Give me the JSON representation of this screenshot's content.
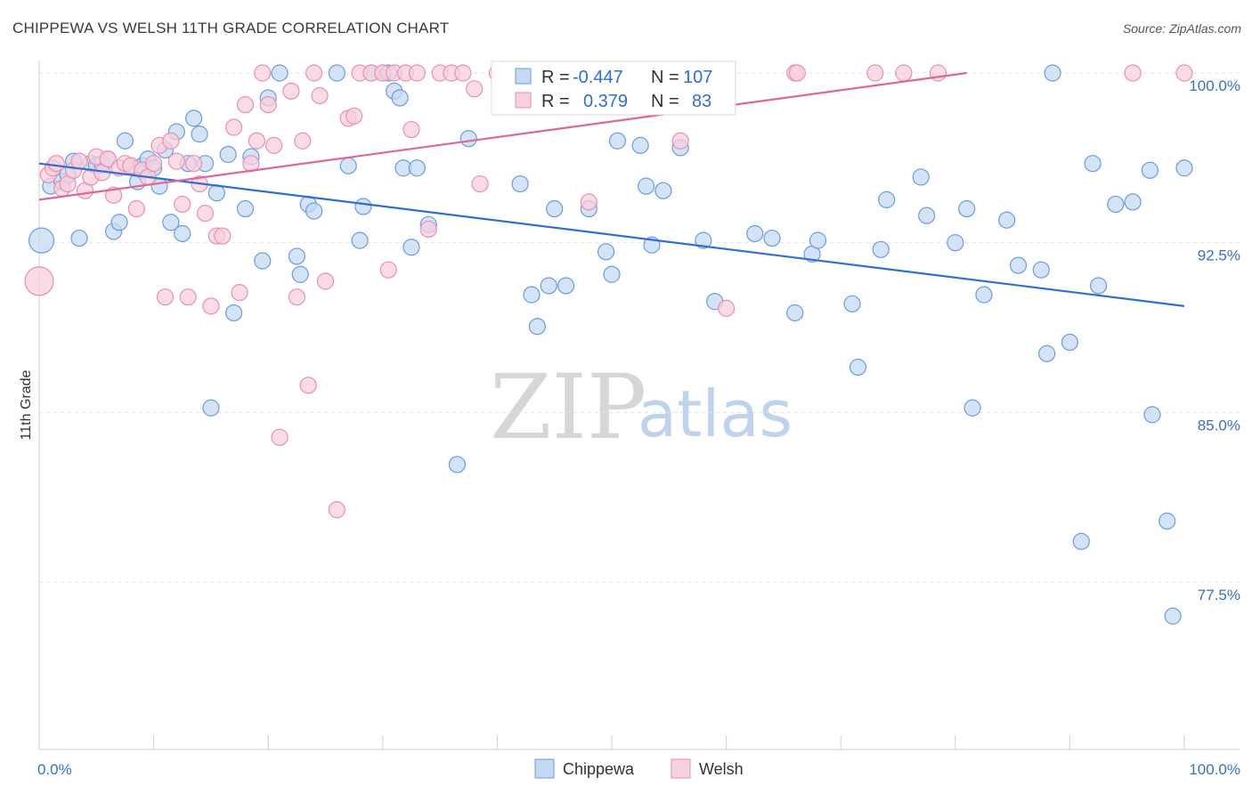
{
  "title": "CHIPPEWA VS WELSH 11TH GRADE CORRELATION CHART",
  "source": "Source: ZipAtlas.com",
  "watermark": {
    "zip": "ZIP",
    "atlas": "atlas"
  },
  "chart_data": {
    "type": "scatter",
    "title": "CHIPPEWA VS WELSH 11TH GRADE CORRELATION CHART",
    "xlabel": "",
    "ylabel": "11th Grade",
    "xlim": [
      0,
      100
    ],
    "ylim": [
      71.0,
      101.5
    ],
    "x_tick_labels": [
      {
        "value": 0,
        "label": "0.0%"
      },
      {
        "value": 100,
        "label": "100.0%"
      }
    ],
    "y_tick_labels": [
      {
        "value": 100.0,
        "label": "100.0%"
      },
      {
        "value": 92.5,
        "label": "92.5%"
      },
      {
        "value": 85.0,
        "label": "85.0%"
      },
      {
        "value": 77.5,
        "label": "77.5%"
      }
    ],
    "legend_position": "top-center",
    "series": [
      {
        "name": "Chippewa",
        "color": "#6a9ce0",
        "fill": "#c6d9f3",
        "R": "-0.447",
        "N": "107",
        "trend": {
          "x": [
            0,
            100
          ],
          "y": [
            96.0,
            89.7
          ]
        },
        "points": [
          [
            0.2,
            92.6,
            14
          ],
          [
            1.0,
            95.0,
            9
          ],
          [
            2.0,
            95.2,
            9
          ],
          [
            2.5,
            95.5,
            9
          ],
          [
            3.0,
            96.1,
            9
          ],
          [
            3.5,
            92.7,
            9
          ],
          [
            4.5,
            96.0,
            9
          ],
          [
            5.0,
            95.9,
            9
          ],
          [
            5.5,
            96.0,
            9
          ],
          [
            6.0,
            96.2,
            9
          ],
          [
            6.5,
            93.0,
            9
          ],
          [
            7.0,
            93.4,
            9
          ],
          [
            7.5,
            97.0,
            9
          ],
          [
            8.5,
            95.8,
            9
          ],
          [
            8.6,
            95.2,
            9
          ],
          [
            9.0,
            95.9,
            9
          ],
          [
            9.5,
            96.2,
            9
          ],
          [
            10.0,
            95.8,
            9
          ],
          [
            10.5,
            95.0,
            9
          ],
          [
            11.0,
            96.6,
            9
          ],
          [
            11.5,
            93.4,
            9
          ],
          [
            12.0,
            97.4,
            9
          ],
          [
            12.5,
            92.9,
            9
          ],
          [
            13.0,
            96.0,
            9
          ],
          [
            13.5,
            98.0,
            9
          ],
          [
            14.0,
            97.3,
            9
          ],
          [
            14.5,
            96.0,
            9
          ],
          [
            15.0,
            85.2,
            9
          ],
          [
            15.5,
            94.7,
            9
          ],
          [
            16.5,
            96.4,
            9
          ],
          [
            17.0,
            89.4,
            9
          ],
          [
            18.0,
            94.0,
            9
          ],
          [
            18.5,
            96.3,
            9
          ],
          [
            19.5,
            91.7,
            9
          ],
          [
            20.0,
            98.9,
            9
          ],
          [
            21.0,
            100.0,
            9
          ],
          [
            22.5,
            91.9,
            9
          ],
          [
            22.8,
            91.1,
            9
          ],
          [
            23.5,
            94.2,
            9
          ],
          [
            24.0,
            93.9,
            9
          ],
          [
            26.0,
            100.0,
            9
          ],
          [
            27.0,
            95.9,
            9
          ],
          [
            28.0,
            92.6,
            9
          ],
          [
            28.3,
            94.1,
            9
          ],
          [
            29.0,
            100.0,
            9
          ],
          [
            30.0,
            100.0,
            9
          ],
          [
            30.5,
            100.0,
            9
          ],
          [
            31.0,
            99.2,
            9
          ],
          [
            31.5,
            98.9,
            9
          ],
          [
            31.8,
            95.8,
            9
          ],
          [
            32.5,
            92.3,
            9
          ],
          [
            33.0,
            95.8,
            9
          ],
          [
            34.0,
            93.3,
            9
          ],
          [
            36.5,
            82.7,
            9
          ],
          [
            37.5,
            97.1,
            9
          ],
          [
            42.0,
            95.1,
            9
          ],
          [
            43.0,
            90.2,
            9
          ],
          [
            43.5,
            88.8,
            9
          ],
          [
            44.5,
            90.6,
            9
          ],
          [
            45.0,
            94.0,
            9
          ],
          [
            46.0,
            90.6,
            9
          ],
          [
            48.0,
            94.0,
            9
          ],
          [
            49.5,
            92.1,
            9
          ],
          [
            50.0,
            91.1,
            9
          ],
          [
            50.5,
            97.0,
            9
          ],
          [
            52.5,
            96.8,
            9
          ],
          [
            53.0,
            95.0,
            9
          ],
          [
            53.5,
            92.4,
            9
          ],
          [
            54.5,
            94.8,
            9
          ],
          [
            56.0,
            96.7,
            9
          ],
          [
            58.0,
            92.6,
            9
          ],
          [
            59.0,
            89.9,
            9
          ],
          [
            62.5,
            92.9,
            9
          ],
          [
            64.0,
            92.7,
            9
          ],
          [
            66.0,
            89.4,
            9
          ],
          [
            67.5,
            92.0,
            9
          ],
          [
            68.0,
            92.6,
            9
          ],
          [
            71.0,
            89.8,
            9
          ],
          [
            71.5,
            87.0,
            9
          ],
          [
            73.5,
            92.2,
            9
          ],
          [
            74.0,
            94.4,
            9
          ],
          [
            77.0,
            95.4,
            9
          ],
          [
            77.5,
            93.7,
            9
          ],
          [
            80.0,
            92.5,
            9
          ],
          [
            81.0,
            94.0,
            9
          ],
          [
            81.5,
            85.2,
            9
          ],
          [
            82.5,
            90.2,
            9
          ],
          [
            84.5,
            93.5,
            9
          ],
          [
            85.5,
            91.5,
            9
          ],
          [
            87.5,
            91.3,
            9
          ],
          [
            88.0,
            87.6,
            9
          ],
          [
            88.5,
            100.0,
            9
          ],
          [
            90.0,
            88.1,
            9
          ],
          [
            91.0,
            79.3,
            9
          ],
          [
            92.0,
            96.0,
            9
          ],
          [
            92.5,
            90.6,
            9
          ],
          [
            94.0,
            94.2,
            9
          ],
          [
            95.5,
            94.3,
            9
          ],
          [
            97.0,
            95.7,
            9
          ],
          [
            97.2,
            84.9,
            9
          ],
          [
            98.5,
            80.2,
            9
          ],
          [
            99.0,
            76.0,
            9
          ],
          [
            100.0,
            95.8,
            9
          ]
        ]
      },
      {
        "name": "Welsh",
        "color": "#e98fb0",
        "fill": "#f8cfdd",
        "R": "0.379",
        "N": "83",
        "trend": {
          "x": [
            0,
            81
          ],
          "y": [
            94.4,
            100.0
          ]
        },
        "points": [
          [
            0.0,
            90.8,
            16
          ],
          [
            0.8,
            95.5,
            9
          ],
          [
            1.2,
            95.8,
            9
          ],
          [
            1.5,
            96.0,
            9
          ],
          [
            2.0,
            94.9,
            9
          ],
          [
            2.5,
            95.1,
            9
          ],
          [
            3.0,
            95.7,
            9
          ],
          [
            3.5,
            96.1,
            9
          ],
          [
            4.0,
            94.8,
            9
          ],
          [
            4.5,
            95.4,
            9
          ],
          [
            5.0,
            96.3,
            9
          ],
          [
            5.5,
            95.6,
            9
          ],
          [
            6.0,
            96.2,
            9
          ],
          [
            6.5,
            94.6,
            9
          ],
          [
            7.0,
            95.8,
            9
          ],
          [
            7.5,
            96.0,
            9
          ],
          [
            8.0,
            95.9,
            9
          ],
          [
            8.5,
            94.0,
            9
          ],
          [
            9.0,
            95.7,
            9
          ],
          [
            9.5,
            95.4,
            9
          ],
          [
            10.0,
            96.0,
            9
          ],
          [
            10.5,
            96.8,
            9
          ],
          [
            11.0,
            90.1,
            9
          ],
          [
            11.5,
            97.0,
            9
          ],
          [
            12.0,
            96.1,
            9
          ],
          [
            12.5,
            94.2,
            9
          ],
          [
            13.0,
            90.1,
            9
          ],
          [
            13.5,
            96.0,
            9
          ],
          [
            14.0,
            95.1,
            9
          ],
          [
            14.5,
            93.8,
            9
          ],
          [
            15.0,
            89.7,
            9
          ],
          [
            15.5,
            92.8,
            9
          ],
          [
            16.0,
            92.8,
            9
          ],
          [
            17.0,
            97.6,
            9
          ],
          [
            17.5,
            90.3,
            9
          ],
          [
            18.0,
            98.6,
            9
          ],
          [
            18.5,
            96.0,
            9
          ],
          [
            19.0,
            97.0,
            9
          ],
          [
            19.5,
            100.0,
            9
          ],
          [
            20.0,
            98.6,
            9
          ],
          [
            20.5,
            96.8,
            9
          ],
          [
            21.0,
            83.9,
            9
          ],
          [
            22.0,
            99.2,
            9
          ],
          [
            22.5,
            90.1,
            9
          ],
          [
            23.0,
            97.0,
            9
          ],
          [
            23.5,
            86.2,
            9
          ],
          [
            24.0,
            100.0,
            9
          ],
          [
            24.5,
            99.0,
            9
          ],
          [
            25.0,
            90.8,
            9
          ],
          [
            26.0,
            80.7,
            9
          ],
          [
            27.0,
            98.0,
            9
          ],
          [
            27.5,
            98.1,
            9
          ],
          [
            28.0,
            100.0,
            9
          ],
          [
            29.0,
            100.0,
            9
          ],
          [
            30.0,
            100.0,
            9
          ],
          [
            30.5,
            91.3,
            9
          ],
          [
            31.0,
            100.0,
            9
          ],
          [
            32.0,
            100.0,
            9
          ],
          [
            32.5,
            97.5,
            9
          ],
          [
            33.0,
            100.0,
            9
          ],
          [
            34.0,
            93.1,
            9
          ],
          [
            35.0,
            100.0,
            9
          ],
          [
            36.0,
            100.0,
            9
          ],
          [
            37.0,
            100.0,
            9
          ],
          [
            38.0,
            99.3,
            9
          ],
          [
            38.5,
            95.1,
            9
          ],
          [
            40.0,
            100.0,
            9
          ],
          [
            41.0,
            100.0,
            9
          ],
          [
            42.0,
            100.0,
            9
          ],
          [
            45.0,
            100.0,
            9
          ],
          [
            47.0,
            100.0,
            9
          ],
          [
            48.0,
            94.3,
            9
          ],
          [
            53.0,
            100.0,
            9
          ],
          [
            54.0,
            100.0,
            9
          ],
          [
            56.0,
            97.0,
            9
          ],
          [
            60.0,
            89.6,
            9
          ],
          [
            66.0,
            100.0,
            9
          ],
          [
            66.2,
            100.0,
            9
          ],
          [
            73.0,
            100.0,
            9
          ],
          [
            75.5,
            100.0,
            9
          ],
          [
            78.5,
            100.0,
            9
          ],
          [
            95.5,
            100.0,
            9
          ],
          [
            100.0,
            100.0,
            9
          ]
        ]
      }
    ]
  },
  "legend": {
    "r_label": "R =",
    "n_label": "N =",
    "rows": [
      {
        "name": "Chippewa",
        "R": "-0.447",
        "N": "107"
      },
      {
        "name": "Welsh",
        "R": "0.379",
        "N": "83"
      }
    ]
  }
}
